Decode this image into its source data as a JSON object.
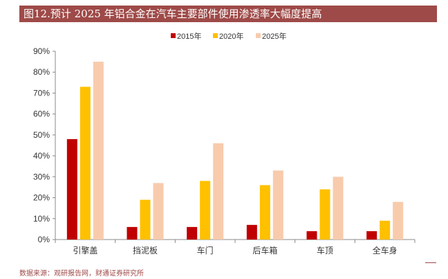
{
  "title": "图12.预计 2025 年铝合金在汽车主要部件使用渗透率大幅度提高",
  "source": "数据来源：观研报告网，财通证券研究所",
  "chart_data": {
    "type": "bar",
    "categories": [
      "引擎盖",
      "挡泥板",
      "车门",
      "后车箱",
      "车顶",
      "全车身"
    ],
    "series": [
      {
        "name": "2015年",
        "color": "#c00000",
        "values": [
          48,
          6,
          6,
          7,
          4,
          4
        ]
      },
      {
        "name": "2020年",
        "color": "#ffc000",
        "values": [
          73,
          19,
          28,
          26,
          24,
          9
        ]
      },
      {
        "name": "2025年",
        "color": "#f8cbad",
        "values": [
          85,
          27,
          46,
          33,
          30,
          18
        ]
      }
    ],
    "yticks": [
      "0%",
      "10%",
      "20%",
      "30%",
      "40%",
      "50%",
      "60%",
      "70%",
      "80%",
      "90%"
    ],
    "ylim": [
      0,
      90
    ],
    "legend_position": "top-center",
    "grid": false
  }
}
